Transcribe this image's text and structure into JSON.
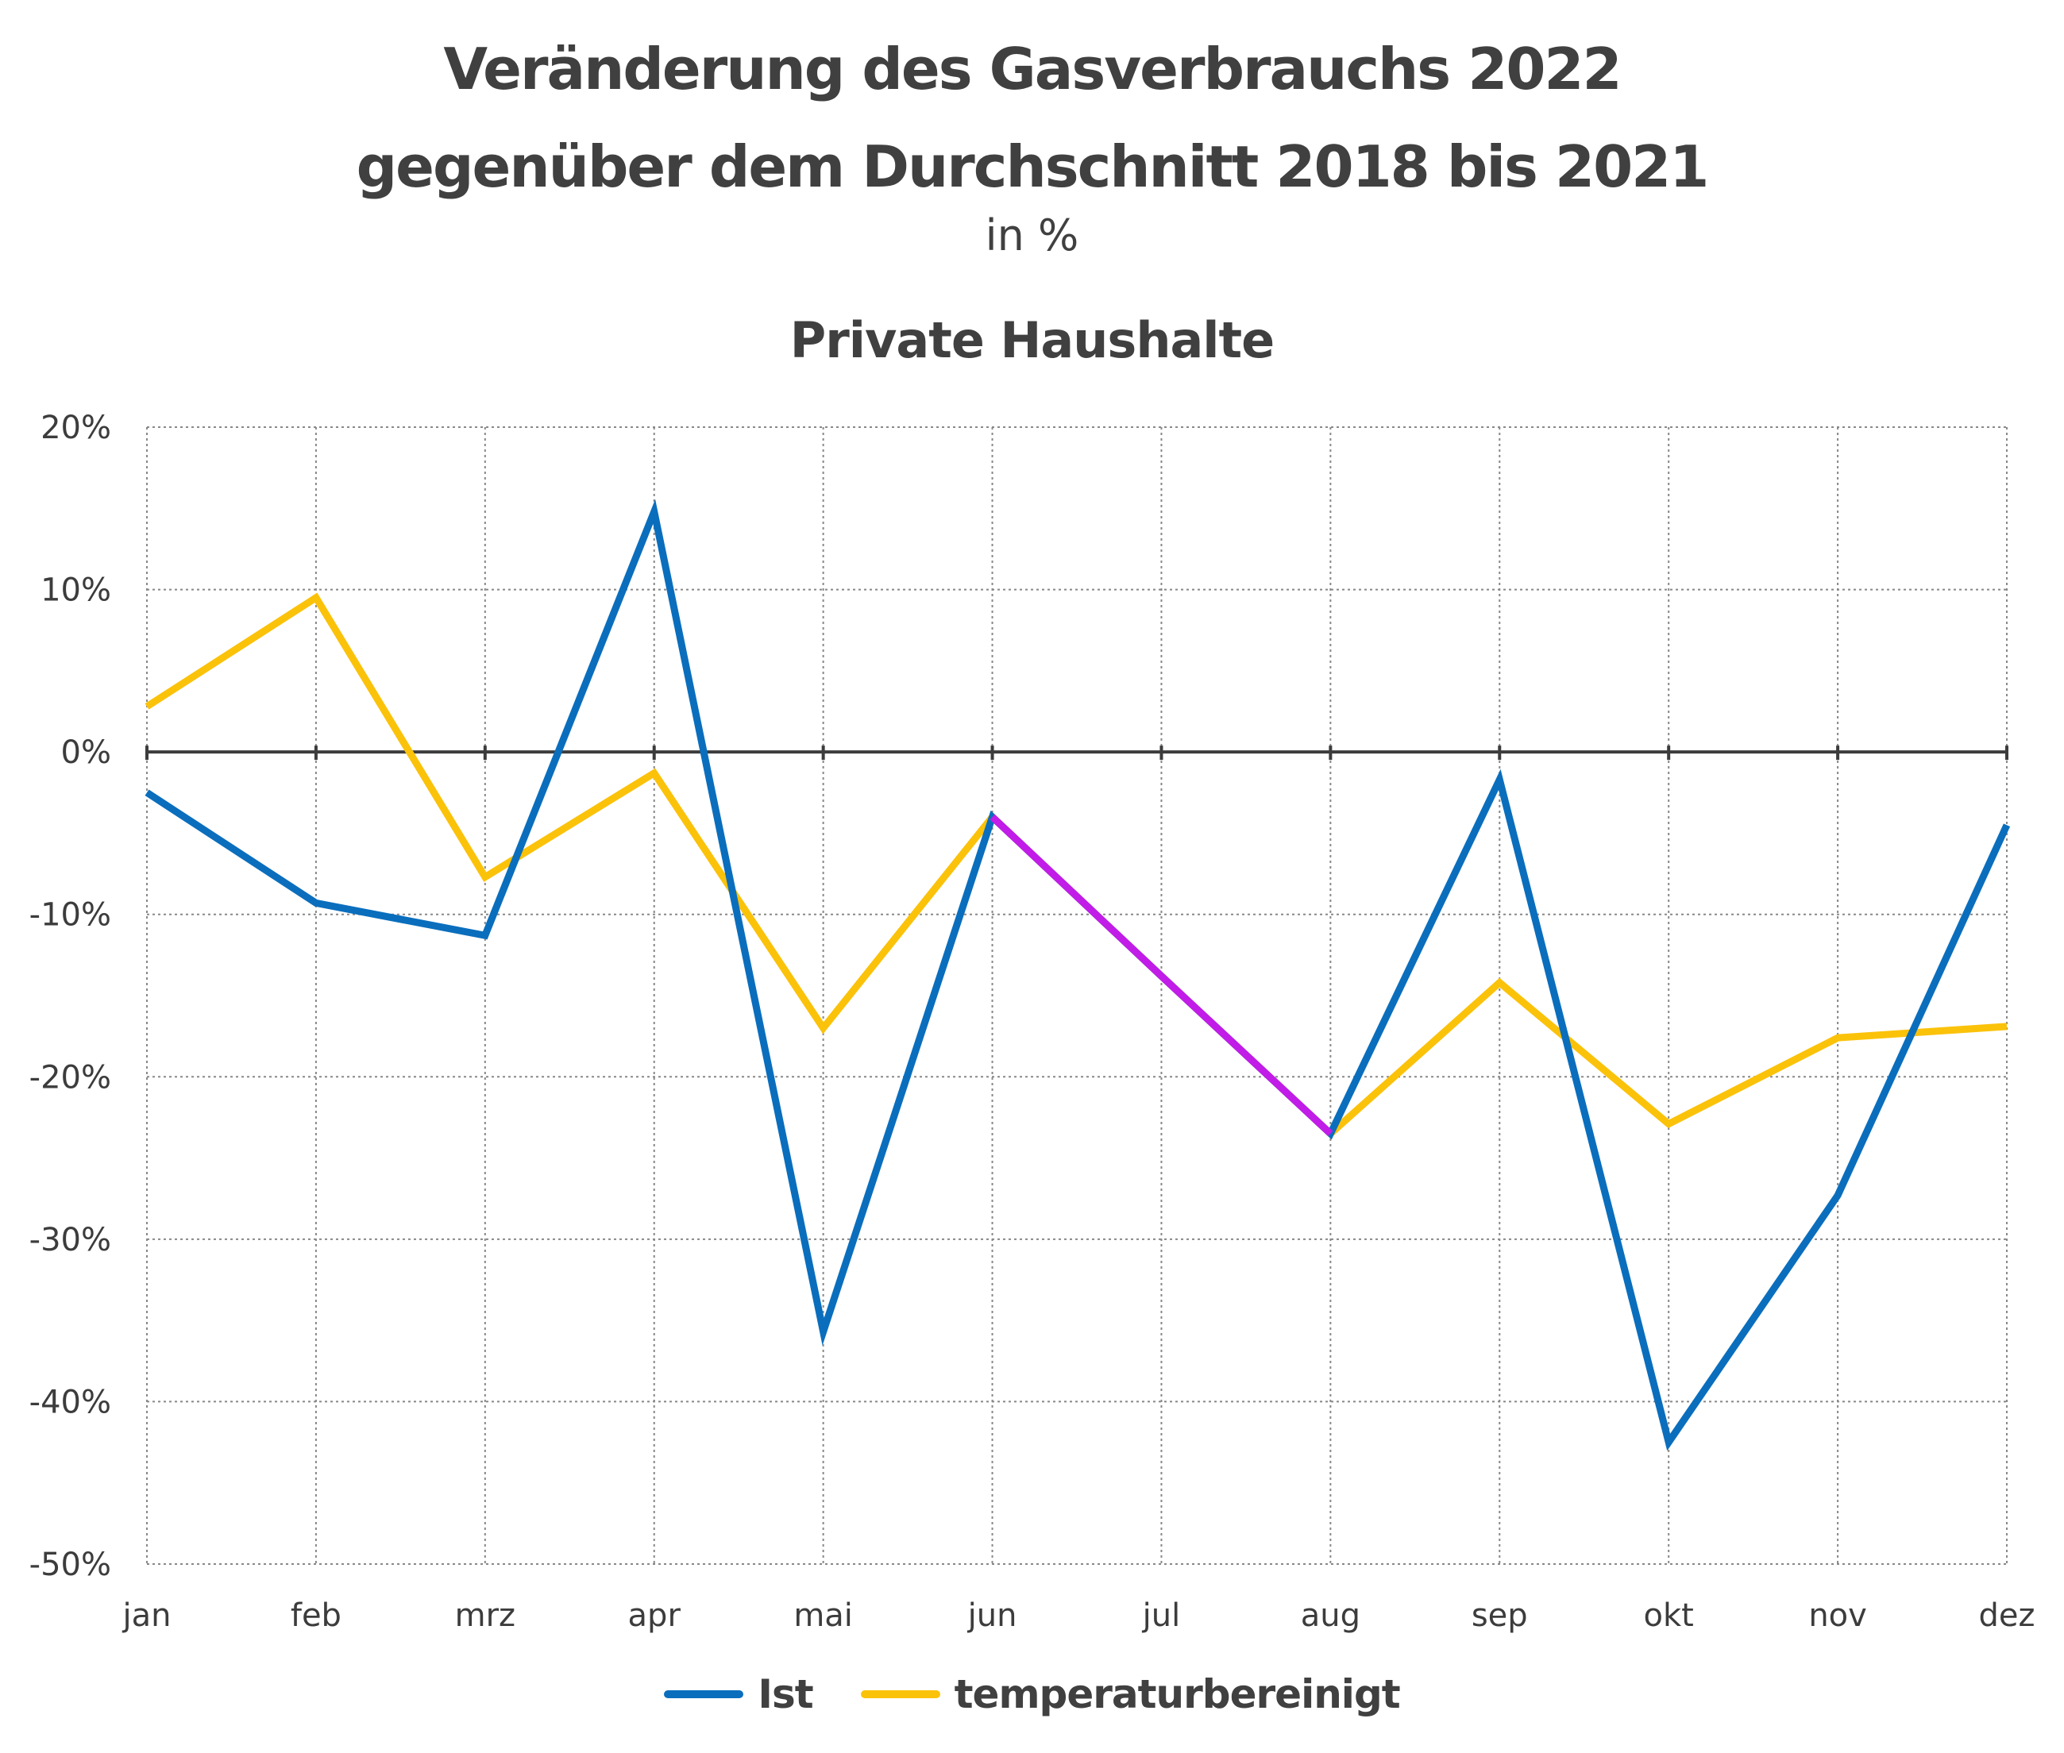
{
  "title_line1": "Veränderung des Gasverbrauchs 2022",
  "title_line2": "gegenüber dem Durchschnitt 2018 bis 2021",
  "unit": "in %",
  "subtitle": "Private Haushalte",
  "colors": {
    "ist": "#0a6ebd",
    "temperaturbereinigt": "#fbc20a",
    "highlight": "#c21ce8",
    "zero_line": "#3c3c3c",
    "grid": "#888888"
  },
  "chart_data": {
    "type": "line",
    "title": "Veränderung des Gasverbrauchs 2022 gegenüber dem Durchschnitt 2018 bis 2021",
    "subtitle": "Private Haushalte",
    "ylabel": "",
    "xlabel": "",
    "categories": [
      "jan",
      "feb",
      "mrz",
      "apr",
      "mai",
      "jun",
      "jul",
      "aug",
      "sep",
      "okt",
      "nov",
      "dez"
    ],
    "yticks": [
      "20%",
      "10%",
      "0%",
      "-10%",
      "-20%",
      "-30%",
      "-40%",
      "-50%"
    ],
    "ylim": [
      -50,
      20
    ],
    "grid": true,
    "legend_position": "bottom-center",
    "series": [
      {
        "name": "Ist",
        "values": [
          -2.5,
          -9.3,
          -11.3,
          14.8,
          -35.7,
          -4,
          -13.8,
          -23.5,
          -1.7,
          -42.5,
          -27.3,
          -4.5
        ]
      },
      {
        "name": "temperaturbereinigt",
        "values": [
          2.8,
          9.5,
          -7.7,
          -1.3,
          -17,
          -4,
          -13.8,
          -23.5,
          -14.2,
          -22.9,
          -17.6,
          -16.9
        ]
      }
    ],
    "overlap_segment": {
      "from": "jun",
      "to": "aug",
      "color": "#c21ce8"
    }
  },
  "legend": {
    "ist_label": "Ist",
    "temp_label": "temperaturbereinigt"
  }
}
